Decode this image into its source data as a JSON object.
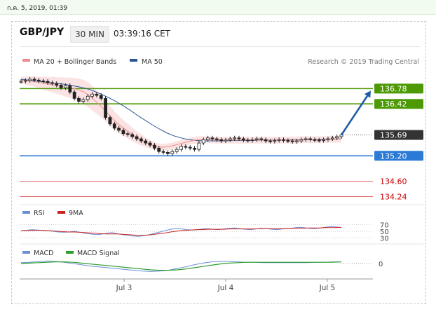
{
  "topbar": {
    "datetime": "ก.ค. 5, 2019, 01:39"
  },
  "header": {
    "pair": "GBP/JPY",
    "timeframe": "30 MIN",
    "time": "03:39:16 CET"
  },
  "legend": {
    "items": [
      {
        "label": "MA 20 + Bollinger Bands",
        "color": "#f08a8a"
      },
      {
        "label": "MA 50",
        "color": "#2b5797"
      }
    ],
    "credit": "Research © 2019 Trading Central"
  },
  "chart_data": [
    {
      "type": "line",
      "title": "GBP/JPY",
      "subtitle": "30 MIN",
      "x_ticks": [
        "Jul 3",
        "Jul 4",
        "Jul 5"
      ],
      "ylim": [
        134.2,
        137.0
      ],
      "price": [
        136.95,
        136.97,
        137.0,
        136.98,
        136.96,
        136.95,
        136.92,
        136.9,
        136.86,
        136.8,
        136.85,
        136.7,
        136.55,
        136.48,
        136.52,
        136.6,
        136.65,
        136.62,
        136.55,
        136.1,
        135.95,
        135.85,
        135.8,
        135.72,
        135.7,
        135.65,
        135.6,
        135.55,
        135.5,
        135.45,
        135.38,
        135.3,
        135.28,
        135.25,
        135.3,
        135.35,
        135.42,
        135.4,
        135.38,
        135.35,
        135.5,
        135.58,
        135.62,
        135.6,
        135.58,
        135.55,
        135.57,
        135.6,
        135.62,
        135.6,
        135.57,
        135.56,
        135.58,
        135.6,
        135.58,
        135.55,
        135.54,
        135.56,
        135.58,
        135.56,
        135.55,
        135.53,
        135.55,
        135.58,
        135.6,
        135.58,
        135.57,
        135.56,
        135.58,
        135.6,
        135.62,
        135.65,
        135.69
      ],
      "ma20": [
        136.98,
        136.97,
        136.96,
        136.94,
        136.92,
        136.9,
        136.88,
        136.86,
        136.84,
        136.82,
        136.8,
        136.78,
        136.74,
        136.7,
        136.62,
        136.52,
        136.42,
        136.3,
        136.18,
        136.06,
        135.95,
        135.86,
        135.78,
        135.7,
        135.62,
        135.56,
        135.5,
        135.45,
        135.42,
        135.4,
        135.41,
        135.43,
        135.46,
        135.49,
        135.52,
        135.55,
        135.57,
        135.58,
        135.58,
        135.58,
        135.57,
        135.57,
        135.57,
        135.57,
        135.57,
        135.57,
        135.57,
        135.57,
        135.57,
        135.57,
        135.57,
        135.57,
        135.57,
        135.57,
        135.57,
        135.57,
        135.57,
        135.57,
        135.58,
        135.58,
        135.58,
        135.58,
        135.58,
        135.58,
        135.59,
        135.59,
        135.6
      ],
      "ma50": [
        137.0,
        136.98,
        136.96,
        136.94,
        136.92,
        136.9,
        136.88,
        136.85,
        136.82,
        136.78,
        136.72,
        136.65,
        136.57,
        136.48,
        136.38,
        136.27,
        136.15,
        136.04,
        135.93,
        135.83,
        135.74,
        135.67,
        135.62,
        135.58,
        135.56,
        135.55,
        135.55,
        135.55,
        135.55,
        135.56,
        135.56,
        135.56,
        135.56,
        135.57,
        135.57,
        135.57,
        135.57,
        135.58,
        135.58,
        135.58,
        135.58,
        135.59,
        135.59,
        135.59,
        135.6
      ],
      "projection": {
        "from": 135.69,
        "to": 136.78
      },
      "levels": [
        {
          "value": "136.78",
          "color": "#4e9a06",
          "label_bg": "#4e9a06"
        },
        {
          "value": "136.42",
          "color": "#4e9a06",
          "label_bg": "#4e9a06"
        },
        {
          "value": "135.69",
          "color": "#555555",
          "label_bg": "#333333",
          "dotted": true
        },
        {
          "value": "135.20",
          "color": "#2b7bd6",
          "label_bg": "#2b7bd6"
        },
        {
          "value": "134.60",
          "color": "#e06060",
          "text_color": "#cc0000"
        },
        {
          "value": "134.24",
          "color": "#e06060",
          "text_color": "#cc0000"
        }
      ]
    },
    {
      "type": "line",
      "title": "RSI",
      "series": [
        {
          "name": "RSI",
          "color": "#6b8fd6"
        },
        {
          "name": "9MA",
          "color": "#cc2222"
        }
      ],
      "ylim": [
        25,
        75
      ],
      "y_ticks": [
        "70",
        "50",
        "30"
      ],
      "rsi": [
        52,
        53,
        55,
        54,
        53,
        52,
        50,
        48,
        47,
        48,
        50,
        47,
        44,
        42,
        40,
        41,
        44,
        46,
        43,
        40,
        38,
        36,
        35,
        37,
        40,
        44,
        48,
        52,
        56,
        58,
        57,
        55,
        54,
        55,
        57,
        58,
        56,
        55,
        57,
        59,
        60,
        58,
        56,
        55,
        57,
        59,
        58,
        56,
        55,
        57,
        58,
        60,
        62,
        61,
        59,
        58,
        60,
        62,
        64,
        63,
        61
      ],
      "ma9": [
        52,
        52,
        53,
        53,
        53,
        52,
        51,
        50,
        49,
        48,
        48,
        47,
        46,
        45,
        44,
        43,
        42,
        42,
        42,
        41,
        40,
        39,
        38,
        38,
        39,
        41,
        43,
        45,
        48,
        50,
        52,
        53,
        54,
        55,
        55,
        56,
        56,
        56,
        56,
        57,
        57,
        57,
        57,
        57,
        57,
        58,
        58,
        58,
        58,
        58,
        58,
        59,
        59,
        59,
        60,
        60,
        60,
        61,
        61,
        61,
        62
      ]
    },
    {
      "type": "line",
      "title": "MACD",
      "series": [
        {
          "name": "MACD",
          "color": "#6b8fd6"
        },
        {
          "name": "MACD Signal",
          "color": "#2f9e2f"
        }
      ],
      "y_ticks": [
        "0"
      ],
      "macd": [
        0.02,
        0.03,
        0.05,
        0.06,
        0.05,
        0.03,
        0.0,
        -0.03,
        -0.06,
        -0.08,
        -0.1,
        -0.12,
        -0.14,
        -0.16,
        -0.18,
        -0.19,
        -0.18,
        -0.16,
        -0.12,
        -0.08,
        -0.03,
        0.01,
        0.04,
        0.05,
        0.05,
        0.04,
        0.03,
        0.03,
        0.02,
        0.02,
        0.02,
        0.02,
        0.02,
        0.02,
        0.03,
        0.03,
        0.04,
        0.04
      ],
      "signal": [
        0.0,
        0.01,
        0.02,
        0.03,
        0.04,
        0.04,
        0.03,
        0.01,
        -0.01,
        -0.03,
        -0.05,
        -0.07,
        -0.09,
        -0.11,
        -0.13,
        -0.15,
        -0.16,
        -0.16,
        -0.15,
        -0.13,
        -0.1,
        -0.07,
        -0.04,
        -0.01,
        0.01,
        0.02,
        0.03,
        0.03,
        0.03,
        0.03,
        0.03,
        0.03,
        0.03,
        0.03,
        0.03,
        0.03,
        0.03,
        0.04
      ]
    }
  ]
}
